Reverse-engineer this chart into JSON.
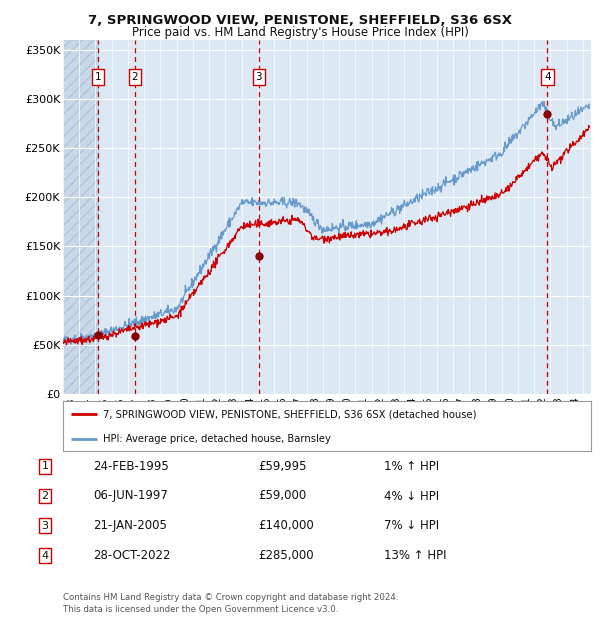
{
  "title": "7, SPRINGWOOD VIEW, PENISTONE, SHEFFIELD, S36 6SX",
  "subtitle": "Price paid vs. HM Land Registry's House Price Index (HPI)",
  "ylim": [
    0,
    360000
  ],
  "yticks": [
    0,
    50000,
    100000,
    150000,
    200000,
    250000,
    300000,
    350000
  ],
  "ytick_labels": [
    "£0",
    "£50K",
    "£100K",
    "£150K",
    "£200K",
    "£250K",
    "£300K",
    "£350K"
  ],
  "xlim_start": 1993.0,
  "xlim_end": 2025.5,
  "background_color": "#ffffff",
  "plot_bg_color": "#dce9f5",
  "hatch_bg_color": "#c8d8ea",
  "grid_color": "#ffffff",
  "purchases": [
    {
      "label": "1",
      "date_year": 1995.14,
      "price": 59995,
      "hpi_pct": "1% ↑ HPI",
      "date_str": "24-FEB-1995",
      "price_str": "£59,995"
    },
    {
      "label": "2",
      "date_year": 1997.43,
      "price": 59000,
      "hpi_pct": "4% ↓ HPI",
      "date_str": "06-JUN-1997",
      "price_str": "£59,000"
    },
    {
      "label": "3",
      "date_year": 2005.05,
      "price": 140000,
      "hpi_pct": "7% ↓ HPI",
      "date_str": "21-JAN-2005",
      "price_str": "£140,000"
    },
    {
      "label": "4",
      "date_year": 2022.82,
      "price": 285000,
      "hpi_pct": "13% ↑ HPI",
      "date_str": "28-OCT-2022",
      "price_str": "£285,000"
    }
  ],
  "legend_entry1": "7, SPRINGWOOD VIEW, PENISTONE, SHEFFIELD, S36 6SX (detached house)",
  "legend_entry2": "HPI: Average price, detached house, Barnsley",
  "footer": "Contains HM Land Registry data © Crown copyright and database right 2024.\nThis data is licensed under the Open Government Licence v3.0.",
  "line_color_red": "#cc0000",
  "line_color_blue": "#6699cc",
  "dashed_line_color": "#cc0000",
  "marker_color": "#880000",
  "hatch_end_year": 1995.14
}
